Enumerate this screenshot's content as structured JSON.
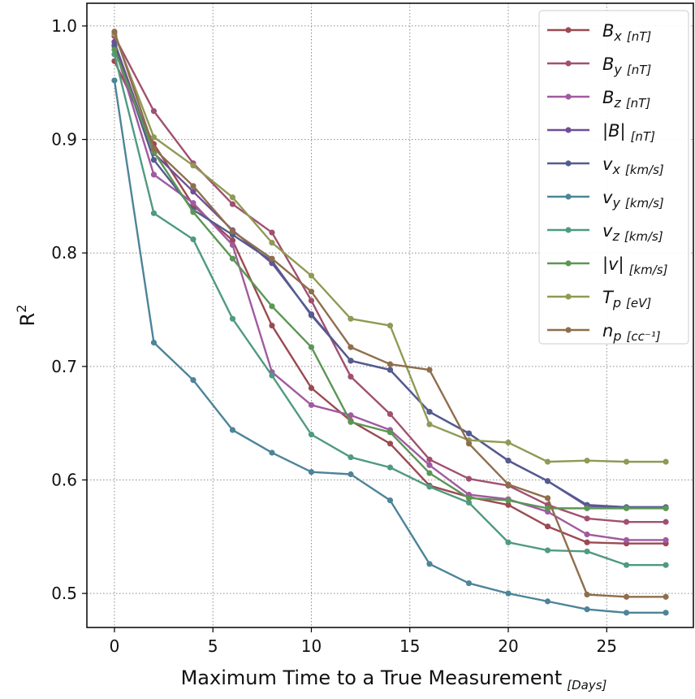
{
  "chart_data": {
    "type": "line",
    "title": "",
    "xlabel": "Maximum Time to a True Measurement",
    "xlabel_unit": "[Days]",
    "ylabel": "R",
    "ylabel_sup": "2",
    "xlim": [
      -1.4,
      29.4
    ],
    "ylim": [
      0.47,
      1.02
    ],
    "xticks": [
      0,
      5,
      10,
      15,
      20,
      25
    ],
    "xtick_labels": [
      "0",
      "5",
      "10",
      "15",
      "20",
      "25"
    ],
    "yticks": [
      0.5,
      0.6,
      0.7,
      0.8,
      0.9,
      1.0
    ],
    "ytick_labels": [
      "0.5",
      "0.6",
      "0.7",
      "0.8",
      "0.9",
      "1.0"
    ],
    "grid": true,
    "legend_position": "top-right",
    "x": [
      0,
      2,
      4,
      6,
      8,
      10,
      12,
      14,
      16,
      18,
      20,
      22,
      24,
      26,
      28
    ],
    "series": [
      {
        "name": "B",
        "sub": "x",
        "unit": "[nT]",
        "abs": false,
        "color": "#9b4a52",
        "values": [
          0.969,
          0.896,
          0.842,
          0.811,
          0.736,
          0.681,
          0.652,
          0.632,
          0.595,
          0.585,
          0.578,
          0.559,
          0.545,
          0.544,
          0.544
        ]
      },
      {
        "name": "B",
        "sub": "y",
        "unit": "[nT]",
        "abs": false,
        "color": "#a05070",
        "values": [
          0.991,
          0.925,
          0.879,
          0.843,
          0.818,
          0.758,
          0.691,
          0.658,
          0.618,
          0.601,
          0.595,
          0.578,
          0.566,
          0.563,
          0.563
        ]
      },
      {
        "name": "B",
        "sub": "z",
        "unit": "[nT]",
        "abs": false,
        "color": "#a05aa0",
        "values": [
          0.982,
          0.869,
          0.844,
          0.807,
          0.695,
          0.666,
          0.657,
          0.644,
          0.613,
          0.587,
          0.583,
          0.572,
          0.552,
          0.547,
          0.547
        ]
      },
      {
        "name": "B",
        "sub": "",
        "unit": "[nT]",
        "abs": true,
        "color": "#6e4f96",
        "values": [
          0.986,
          0.888,
          0.854,
          0.82,
          0.791,
          0.746,
          0.705,
          0.697,
          0.66,
          0.641,
          0.617,
          0.599,
          0.577,
          0.576,
          0.576
        ]
      },
      {
        "name": "v",
        "sub": "x",
        "unit": "[km/s]",
        "abs": false,
        "color": "#535c8e",
        "values": [
          0.983,
          0.882,
          0.838,
          0.816,
          0.793,
          0.745,
          0.705,
          0.697,
          0.66,
          0.641,
          0.617,
          0.599,
          0.578,
          0.576,
          0.576
        ]
      },
      {
        "name": "v",
        "sub": "y",
        "unit": "[km/s]",
        "abs": false,
        "color": "#4d8498",
        "values": [
          0.952,
          0.721,
          0.688,
          0.644,
          0.624,
          0.607,
          0.605,
          0.582,
          0.526,
          0.509,
          0.5,
          0.493,
          0.486,
          0.483,
          0.483
        ]
      },
      {
        "name": "v",
        "sub": "z",
        "unit": "[km/s]",
        "abs": false,
        "color": "#4f9a82",
        "values": [
          0.975,
          0.835,
          0.812,
          0.742,
          0.692,
          0.64,
          0.62,
          0.611,
          0.594,
          0.58,
          0.545,
          0.538,
          0.537,
          0.525,
          0.525
        ]
      },
      {
        "name": "v",
        "sub": "",
        "unit": "[km/s]",
        "abs": true,
        "color": "#5c9655",
        "values": [
          0.979,
          0.889,
          0.836,
          0.795,
          0.753,
          0.717,
          0.651,
          0.642,
          0.606,
          0.584,
          0.582,
          0.575,
          0.575,
          0.575,
          0.575
        ]
      },
      {
        "name": "T",
        "sub": "p",
        "unit": "[eV]",
        "abs": false,
        "color": "#8f9a55",
        "values": [
          0.993,
          0.902,
          0.877,
          0.849,
          0.809,
          0.78,
          0.742,
          0.736,
          0.649,
          0.635,
          0.633,
          0.616,
          0.617,
          0.616,
          0.616
        ]
      },
      {
        "name": "n",
        "sub": "p",
        "unit": "[cc⁻¹]",
        "abs": false,
        "color": "#8f6e4c",
        "values": [
          0.995,
          0.892,
          0.859,
          0.819,
          0.795,
          0.766,
          0.717,
          0.702,
          0.697,
          0.632,
          0.596,
          0.584,
          0.499,
          0.497,
          0.497
        ]
      }
    ]
  }
}
